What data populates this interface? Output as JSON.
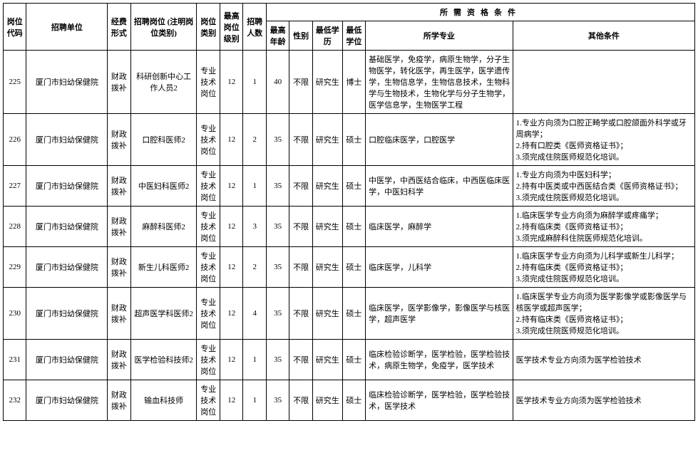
{
  "colors": {
    "border": "#000000",
    "background": "#ffffff",
    "text": "#000000"
  },
  "typography": {
    "font_family": "SimSun",
    "base_fontsize_pt": 8,
    "header_weight": "bold"
  },
  "header": {
    "group": "所需资格条件",
    "cols": {
      "code": "岗位代码",
      "unit": "招聘单位",
      "fund": "经费形式",
      "post": "招聘岗位 (注明岗位类别)",
      "cat": "岗位类别",
      "level": "最高岗位级别",
      "count": "招聘人数",
      "age": "最高年龄",
      "sex": "性别",
      "edu": "最低学历",
      "degree": "最低学位",
      "major": "所学专业",
      "other": "其他条件"
    }
  },
  "rows": [
    {
      "code": "225",
      "unit": "厦门市妇幼保健院",
      "fund": "财政拨补",
      "post": "科研创新中心工作人员2",
      "cat": "专业技术岗位",
      "level": "12",
      "count": "1",
      "age": "40",
      "sex": "不限",
      "edu": "研究生",
      "degree": "博士",
      "major": "基础医学，免疫学，病原生物学，分子生物医学，转化医学，再生医学，医学遗传学，生物信息学，生物信息技术，生物科学与生物技术，生物化学与分子生物学，医学信息学，生物医学工程",
      "other": ""
    },
    {
      "code": "226",
      "unit": "厦门市妇幼保健院",
      "fund": "财政拨补",
      "post": "口腔科医师2",
      "cat": "专业技术岗位",
      "level": "12",
      "count": "2",
      "age": "35",
      "sex": "不限",
      "edu": "研究生",
      "degree": "硕士",
      "major": "口腔临床医学，口腔医学",
      "other": "1.专业方向须为口腔正畸学或口腔颌面外科学或牙周病学；\n2.持有口腔类《医师资格证书》；\n3.须完成住院医师规范化培训。"
    },
    {
      "code": "227",
      "unit": "厦门市妇幼保健院",
      "fund": "财政拨补",
      "post": "中医妇科医师2",
      "cat": "专业技术岗位",
      "level": "12",
      "count": "1",
      "age": "35",
      "sex": "不限",
      "edu": "研究生",
      "degree": "硕士",
      "major": "中医学，中西医结合临床，中西医临床医学，中医妇科学",
      "other": "1.专业方向须为中医妇科学；\n2.持有中医类或中西医结合类《医师资格证书》；\n3.须完成住院医师规范化培训。"
    },
    {
      "code": "228",
      "unit": "厦门市妇幼保健院",
      "fund": "财政拨补",
      "post": "麻醉科医师2",
      "cat": "专业技术岗位",
      "level": "12",
      "count": "3",
      "age": "35",
      "sex": "不限",
      "edu": "研究生",
      "degree": "硕士",
      "major": "临床医学，麻醉学",
      "other": "1.临床医学专业方向须为麻醉学或疼痛学；\n2.持有临床类《医师资格证书》；\n3.须完成麻醉科住院医师规范化培训。"
    },
    {
      "code": "229",
      "unit": "厦门市妇幼保健院",
      "fund": "财政拨补",
      "post": "新生儿科医师2",
      "cat": "专业技术岗位",
      "level": "12",
      "count": "2",
      "age": "35",
      "sex": "不限",
      "edu": "研究生",
      "degree": "硕士",
      "major": "临床医学，儿科学",
      "other": "1.临床医学专业方向须为儿科学或新生儿科学；\n2.持有临床类《医师资格证书》；\n3.须完成住院医师规范化培训。"
    },
    {
      "code": "230",
      "unit": "厦门市妇幼保健院",
      "fund": "财政拨补",
      "post": "超声医学科医师2",
      "cat": "专业技术岗位",
      "level": "12",
      "count": "4",
      "age": "35",
      "sex": "不限",
      "edu": "研究生",
      "degree": "硕士",
      "major": "临床医学，医学影像学，影像医学与核医学，超声医学",
      "other": "1.临床医学专业方向须为医学影像学或影像医学与核医学或超声医学；\n2.持有临床类《医师资格证书》；\n3.须完成住院医师规范化培训。"
    },
    {
      "code": "231",
      "unit": "厦门市妇幼保健院",
      "fund": "财政拨补",
      "post": "医学检验科技师2",
      "cat": "专业技术岗位",
      "level": "12",
      "count": "1",
      "age": "35",
      "sex": "不限",
      "edu": "研究生",
      "degree": "硕士",
      "major": "临床检验诊断学，医学检验，医学检验技术，病原生物学，免疫学，医学技术",
      "other": "医学技术专业方向须为医学检验技术"
    },
    {
      "code": "232",
      "unit": "厦门市妇幼保健院",
      "fund": "财政拨补",
      "post": "输血科技师",
      "cat": "专业技术岗位",
      "level": "12",
      "count": "1",
      "age": "35",
      "sex": "不限",
      "edu": "研究生",
      "degree": "硕士",
      "major": "临床检验诊断学，医学检验，医学检验技术，医学技术",
      "other": "医学技术专业方向须为医学检验技术"
    }
  ]
}
